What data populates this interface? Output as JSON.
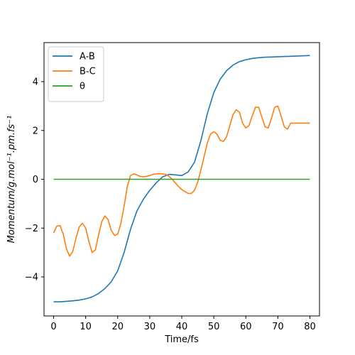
{
  "chart_data": {
    "type": "line",
    "title": "",
    "xlabel": "Time/fs",
    "ylabel": "Momentum/g.mol⁻¹.pm.fs⁻¹",
    "xlim": [
      -3.0,
      83.0
    ],
    "ylim": [
      -5.6,
      5.6
    ],
    "xticks": [
      0,
      10,
      20,
      30,
      40,
      50,
      60,
      70,
      80
    ],
    "yticks": [
      -4,
      -2,
      0,
      2,
      4
    ],
    "xtick_labels": [
      "0",
      "10",
      "20",
      "30",
      "40",
      "50",
      "60",
      "70",
      "80"
    ],
    "ytick_labels": [
      "−4",
      "−2",
      "0",
      "2",
      "4"
    ],
    "grid": false,
    "legend_position": "top-left",
    "series": [
      {
        "name": "A-B",
        "color": "#1f77b4",
        "x": [
          0,
          2,
          4,
          6,
          8,
          10,
          12,
          14,
          16,
          18,
          20,
          22,
          24,
          26,
          28,
          30,
          32,
          34,
          36,
          38,
          40,
          42,
          44,
          46,
          48,
          50,
          52,
          54,
          56,
          58,
          60,
          62,
          64,
          66,
          68,
          70,
          72,
          74,
          76,
          78,
          80
        ],
        "y": [
          -5.02,
          -5.02,
          -5.0,
          -4.98,
          -4.95,
          -4.9,
          -4.82,
          -4.68,
          -4.48,
          -4.2,
          -3.75,
          -3.0,
          -2.05,
          -1.3,
          -0.82,
          -0.45,
          -0.15,
          0.1,
          0.2,
          0.18,
          0.15,
          0.3,
          0.7,
          1.6,
          2.7,
          3.55,
          4.1,
          4.45,
          4.68,
          4.82,
          4.9,
          4.95,
          4.98,
          5.0,
          5.01,
          5.02,
          5.03,
          5.04,
          5.05,
          5.06,
          5.07
        ]
      },
      {
        "name": "B-C",
        "color": "#ff7f0e",
        "x": [
          0,
          1,
          2,
          3,
          4,
          5,
          6,
          7,
          8,
          9,
          10,
          11,
          12,
          13,
          14,
          15,
          16,
          17,
          18,
          19,
          20,
          21,
          22,
          23,
          24,
          25,
          26,
          27,
          28,
          29,
          30,
          31,
          32,
          33,
          34,
          35,
          36,
          37,
          38,
          39,
          40,
          41,
          42,
          43,
          44,
          45,
          46,
          47,
          48,
          49,
          50,
          51,
          52,
          53,
          54,
          55,
          56,
          57,
          58,
          59,
          60,
          61,
          62,
          63,
          64,
          65,
          66,
          67,
          68,
          69,
          70,
          71,
          72,
          73,
          74,
          75,
          76,
          77,
          78,
          79,
          80
        ],
        "y": [
          -2.2,
          -1.92,
          -1.9,
          -2.25,
          -2.85,
          -3.15,
          -2.95,
          -2.4,
          -1.95,
          -1.8,
          -2.0,
          -2.55,
          -3.0,
          -2.9,
          -2.3,
          -1.75,
          -1.5,
          -1.65,
          -2.1,
          -2.3,
          -2.25,
          -1.8,
          -1.1,
          -0.3,
          0.15,
          0.22,
          0.18,
          0.12,
          0.1,
          0.12,
          0.15,
          0.2,
          0.22,
          0.23,
          0.22,
          0.2,
          0.12,
          0.0,
          -0.15,
          -0.3,
          -0.42,
          -0.5,
          -0.58,
          -0.58,
          -0.45,
          -0.1,
          0.4,
          0.95,
          1.5,
          1.85,
          1.95,
          1.85,
          1.6,
          1.55,
          1.75,
          2.2,
          2.65,
          2.85,
          2.75,
          2.3,
          2.1,
          2.2,
          2.6,
          2.95,
          2.95,
          2.55,
          2.15,
          2.1,
          2.5,
          2.95,
          3.0,
          2.6,
          2.15,
          2.05,
          2.3,
          2.3,
          2.3,
          2.3,
          2.3,
          2.3,
          2.3
        ]
      },
      {
        "name": "θ",
        "color": "#2ca02c",
        "x": [
          0,
          80
        ],
        "y": [
          0,
          0
        ]
      }
    ]
  }
}
